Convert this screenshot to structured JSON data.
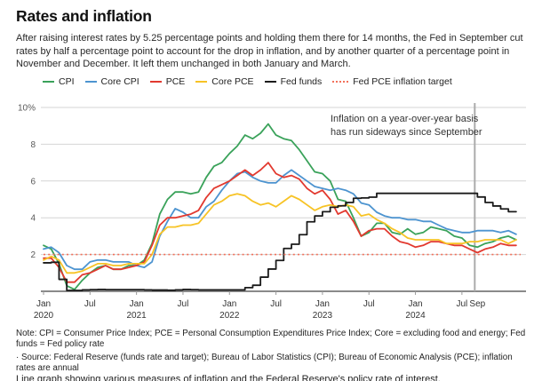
{
  "header": {
    "title": "Rates and inflation",
    "description": "After raising interest rates by 5.25 percentage points and holding them there for 14 months, the Fed in September cut rates by half a percentage point to account for the drop in inflation, and by another quarter of a percentage point in November and December. It left them unchanged in both January and March."
  },
  "colors": {
    "cpi": "#3aa25a",
    "core_cpi": "#4d94d0",
    "pce": "#e2392f",
    "core_pce": "#f7c325",
    "fed_funds": "#1b1b1b",
    "target": "#f2705a",
    "gridline": "#d4d4d4",
    "axis": "#444444",
    "tick": "#999999",
    "axis_label": "#333333",
    "y_label": "#595959",
    "vline": "#ababab",
    "annotation_text": "#333333"
  },
  "annotation": {
    "line1": "Inflation on a year-over-year basis",
    "line2": "has run sideways since September"
  },
  "chart_data": {
    "type": "line",
    "title": "Rates and inflation",
    "xlabel": "",
    "ylabel": "",
    "ylim": [
      0,
      10
    ],
    "grid": "horizontal",
    "legend_position": "top",
    "x": [
      "2020-01",
      "2020-02",
      "2020-03",
      "2020-04",
      "2020-05",
      "2020-06",
      "2020-07",
      "2020-08",
      "2020-09",
      "2020-10",
      "2020-11",
      "2020-12",
      "2021-01",
      "2021-02",
      "2021-03",
      "2021-04",
      "2021-05",
      "2021-06",
      "2021-07",
      "2021-08",
      "2021-09",
      "2021-10",
      "2021-11",
      "2021-12",
      "2022-01",
      "2022-02",
      "2022-03",
      "2022-04",
      "2022-05",
      "2022-06",
      "2022-07",
      "2022-08",
      "2022-09",
      "2022-10",
      "2022-11",
      "2022-12",
      "2023-01",
      "2023-02",
      "2023-03",
      "2023-04",
      "2023-05",
      "2023-06",
      "2023-07",
      "2023-08",
      "2023-09",
      "2023-10",
      "2023-11",
      "2023-12",
      "2024-01",
      "2024-02",
      "2024-03",
      "2024-04",
      "2024-05",
      "2024-06",
      "2024-07",
      "2024-08",
      "2024-09",
      "2024-10",
      "2024-11",
      "2024-12",
      "2025-01",
      "2025-02"
    ],
    "y_ticks": [
      {
        "value": 10,
        "label": "10%"
      },
      {
        "value": 8,
        "label": "8"
      },
      {
        "value": 6,
        "label": "6"
      },
      {
        "value": 4,
        "label": "4"
      },
      {
        "value": 2,
        "label": "2"
      }
    ],
    "x_ticks": [
      {
        "month_index": 0,
        "label": "Jan",
        "year": "2020",
        "tick": true
      },
      {
        "month_index": 6,
        "label": "Jul",
        "year": "",
        "tick": true
      },
      {
        "month_index": 12,
        "label": "Jan",
        "year": "2021",
        "tick": true
      },
      {
        "month_index": 18,
        "label": "Jul",
        "year": "",
        "tick": true
      },
      {
        "month_index": 24,
        "label": "Jan",
        "year": "2022",
        "tick": true
      },
      {
        "month_index": 30,
        "label": "Jul",
        "year": "",
        "tick": true
      },
      {
        "month_index": 36,
        "label": "Jan",
        "year": "2023",
        "tick": true
      },
      {
        "month_index": 42,
        "label": "Jul",
        "year": "",
        "tick": true
      },
      {
        "month_index": 48,
        "label": "Jan",
        "year": "2024",
        "tick": true
      },
      {
        "month_index": 54,
        "label": "Jul",
        "year": "",
        "tick": true
      },
      {
        "month_index": 56,
        "label": "Sep",
        "year": "",
        "tick": false
      }
    ],
    "vline": {
      "month": "2024-09"
    },
    "series": [
      {
        "name": "CPI",
        "color_key": "cpi",
        "style": "solid",
        "interpolation": "linear",
        "values": [
          2.5,
          2.3,
          1.5,
          0.3,
          0.1,
          0.6,
          1.0,
          1.3,
          1.4,
          1.2,
          1.2,
          1.4,
          1.4,
          1.7,
          2.6,
          4.2,
          5.0,
          5.4,
          5.4,
          5.3,
          5.4,
          6.2,
          6.8,
          7.0,
          7.5,
          7.9,
          8.5,
          8.3,
          8.6,
          9.1,
          8.5,
          8.3,
          8.2,
          7.7,
          7.1,
          6.5,
          6.4,
          6.0,
          5.0,
          4.9,
          4.0,
          3.0,
          3.2,
          3.7,
          3.7,
          3.2,
          3.1,
          3.4,
          3.1,
          3.2,
          3.5,
          3.4,
          3.3,
          3.0,
          2.9,
          2.5,
          2.4,
          2.6,
          2.7,
          2.9,
          3.0,
          2.8
        ]
      },
      {
        "name": "Core CPI",
        "color_key": "core_cpi",
        "style": "solid",
        "interpolation": "linear",
        "values": [
          2.3,
          2.4,
          2.1,
          1.4,
          1.2,
          1.2,
          1.6,
          1.7,
          1.7,
          1.6,
          1.6,
          1.6,
          1.4,
          1.3,
          1.6,
          3.0,
          3.8,
          4.5,
          4.3,
          4.0,
          4.0,
          4.6,
          4.9,
          5.5,
          6.0,
          6.4,
          6.5,
          6.2,
          6.0,
          5.9,
          5.9,
          6.3,
          6.6,
          6.3,
          6.0,
          5.7,
          5.6,
          5.5,
          5.6,
          5.5,
          5.3,
          4.8,
          4.7,
          4.3,
          4.1,
          4.0,
          4.0,
          3.9,
          3.9,
          3.8,
          3.8,
          3.6,
          3.4,
          3.3,
          3.2,
          3.2,
          3.3,
          3.3,
          3.3,
          3.2,
          3.3,
          3.1
        ]
      },
      {
        "name": "PCE",
        "color_key": "pce",
        "style": "solid",
        "interpolation": "linear",
        "values": [
          1.8,
          1.8,
          1.3,
          0.5,
          0.5,
          0.9,
          1.0,
          1.2,
          1.4,
          1.2,
          1.2,
          1.3,
          1.4,
          1.6,
          2.5,
          3.6,
          4.0,
          4.0,
          4.1,
          4.2,
          4.4,
          5.1,
          5.6,
          5.8,
          6.0,
          6.3,
          6.6,
          6.3,
          6.6,
          7.0,
          6.4,
          6.2,
          6.3,
          6.1,
          5.6,
          5.3,
          5.5,
          5.0,
          4.2,
          4.4,
          3.8,
          3.0,
          3.3,
          3.4,
          3.4,
          3.0,
          2.7,
          2.6,
          2.4,
          2.5,
          2.7,
          2.7,
          2.6,
          2.5,
          2.5,
          2.3,
          2.1,
          2.3,
          2.4,
          2.6,
          2.5,
          2.5
        ]
      },
      {
        "name": "Core PCE",
        "color_key": "core_pce",
        "style": "solid",
        "interpolation": "linear",
        "values": [
          1.7,
          1.9,
          1.7,
          1.0,
          1.0,
          1.1,
          1.3,
          1.5,
          1.5,
          1.4,
          1.4,
          1.5,
          1.5,
          1.5,
          2.0,
          3.1,
          3.5,
          3.5,
          3.6,
          3.6,
          3.7,
          4.2,
          4.7,
          4.9,
          5.2,
          5.3,
          5.2,
          4.9,
          4.7,
          4.8,
          4.6,
          4.9,
          5.2,
          5.0,
          4.7,
          4.4,
          4.6,
          4.7,
          4.6,
          4.7,
          4.6,
          4.1,
          4.2,
          3.9,
          3.7,
          3.4,
          3.2,
          2.9,
          2.8,
          2.8,
          2.8,
          2.8,
          2.6,
          2.6,
          2.6,
          2.7,
          2.7,
          2.8,
          2.8,
          2.8,
          2.6,
          2.8
        ]
      },
      {
        "name": "Fed funds",
        "color_key": "fed_funds",
        "style": "solid",
        "interpolation": "step",
        "values": [
          1.55,
          1.58,
          0.65,
          0.05,
          0.05,
          0.08,
          0.09,
          0.1,
          0.09,
          0.09,
          0.09,
          0.09,
          0.09,
          0.08,
          0.07,
          0.07,
          0.06,
          0.08,
          0.1,
          0.09,
          0.08,
          0.08,
          0.08,
          0.08,
          0.08,
          0.08,
          0.2,
          0.33,
          0.77,
          1.21,
          1.68,
          2.33,
          2.56,
          3.08,
          3.78,
          4.1,
          4.33,
          4.57,
          4.65,
          4.83,
          5.06,
          5.08,
          5.12,
          5.33,
          5.33,
          5.33,
          5.33,
          5.33,
          5.33,
          5.33,
          5.33,
          5.33,
          5.33,
          5.33,
          5.33,
          5.33,
          5.13,
          4.83,
          4.64,
          4.48,
          4.33,
          4.33
        ]
      },
      {
        "name": "Fed PCE inflation target",
        "color_key": "target",
        "style": "dotted",
        "interpolation": "constant",
        "constant_value": 2.0
      }
    ]
  },
  "notes": {
    "note": "Note: CPI = Consumer Price Index; PCE = Personal Consumption Expenditures Price Index; Core = excluding food and energy; Fed funds = Fed policy rate",
    "source": "· Source: Federal Reserve (funds rate and target); Bureau of Labor Statistics (CPI); Bureau of Economic Analysis (PCE); inflation rates are annual",
    "caption": "Line graph showing various measures of inflation and the Federal Reserve's policy rate of interest."
  }
}
